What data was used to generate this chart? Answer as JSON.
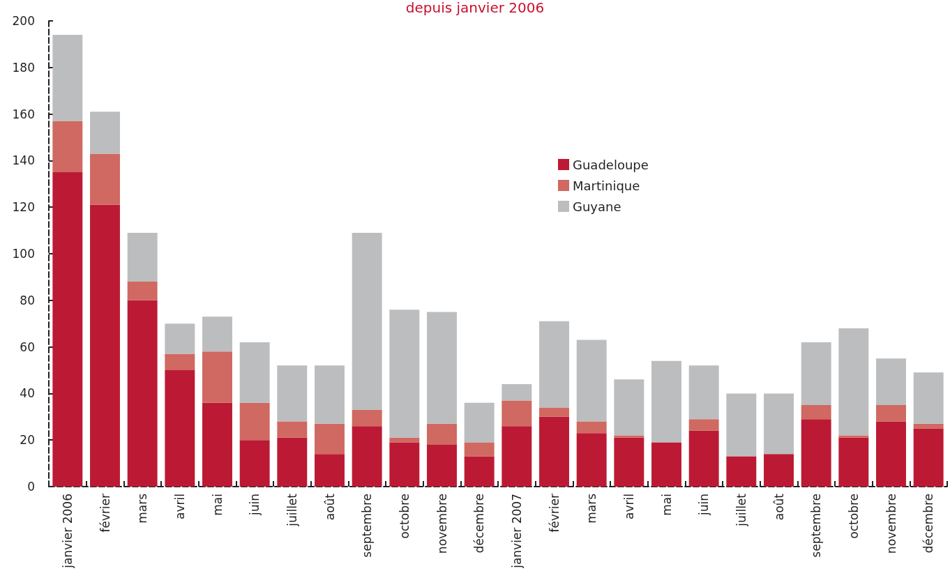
{
  "chart_data": {
    "type": "bar",
    "title": "depuis janvier 2006",
    "categories": [
      "janvier 2006",
      "février",
      "mars",
      "avril",
      "mai",
      "juin",
      "juillet",
      "août",
      "septembre",
      "octobre",
      "novembre",
      "décembre",
      "janvier 2007",
      "février",
      "mars",
      "avril",
      "mai",
      "juin",
      "juillet",
      "août",
      "septembre",
      "octobre",
      "novembre",
      "décembre"
    ],
    "series": [
      {
        "name": "Guadeloupe",
        "color": "#bc1a34",
        "values": [
          135,
          121,
          80,
          50,
          36,
          20,
          21,
          14,
          26,
          19,
          18,
          13,
          26,
          30,
          23,
          21,
          19,
          24,
          13,
          14,
          29,
          21,
          28,
          25
        ]
      },
      {
        "name": "Martinique",
        "color": "#cf6961",
        "values": [
          22,
          22,
          8,
          7,
          22,
          16,
          7,
          13,
          7,
          2,
          9,
          6,
          11,
          4,
          5,
          1,
          0,
          5,
          0,
          0,
          6,
          1,
          7,
          2
        ]
      },
      {
        "name": "Guyane",
        "color": "#bcbdbf",
        "values": [
          37,
          18,
          21,
          13,
          15,
          26,
          24,
          25,
          76,
          55,
          48,
          17,
          7,
          37,
          35,
          24,
          35,
          23,
          27,
          26,
          27,
          46,
          20,
          22
        ]
      }
    ],
    "stacked": true,
    "ylim": [
      0,
      200
    ],
    "yticks": [
      0,
      20,
      40,
      60,
      80,
      100,
      120,
      140,
      160,
      180,
      200
    ],
    "grid": false,
    "legend": "top right"
  }
}
